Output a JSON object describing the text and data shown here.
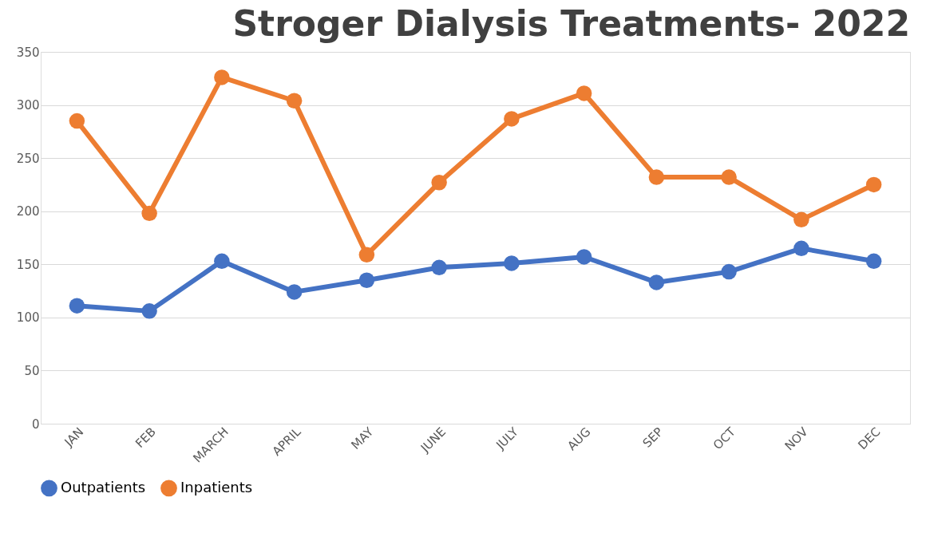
{
  "chart_data": {
    "type": "line",
    "title": "Stroger Dialysis Treatments- 2022",
    "categories": [
      "JAN",
      "FEB",
      "MARCH",
      "APRIL",
      "MAY",
      "JUNE",
      "JULY",
      "AUG",
      "SEP",
      "OCT",
      "NOV",
      "DEC"
    ],
    "series": [
      {
        "name": "Outpatients",
        "color": "#4472c4",
        "values": [
          111,
          106,
          153,
          124,
          135,
          147,
          151,
          157,
          133,
          143,
          165,
          153
        ]
      },
      {
        "name": "Inpatients",
        "color": "#ed7d31",
        "values": [
          285,
          198,
          326,
          304,
          159,
          227,
          287,
          311,
          232,
          232,
          192,
          225
        ]
      }
    ],
    "ylim": [
      0,
      350
    ],
    "yticks": [
      0,
      50,
      100,
      150,
      200,
      250,
      300,
      350
    ],
    "grid": "y",
    "legend": "bottom",
    "marker": "circle",
    "line_style": "solid"
  }
}
